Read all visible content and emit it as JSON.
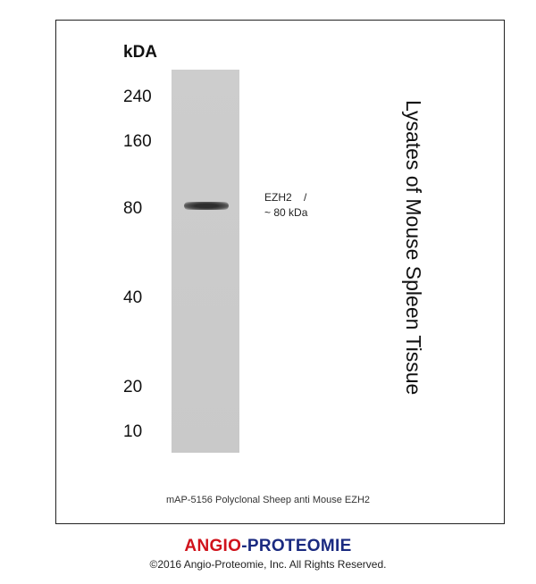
{
  "blot": {
    "unit_label": "kDA",
    "markers": [
      {
        "label": "240",
        "kda": 240
      },
      {
        "label": "160",
        "kda": 160
      },
      {
        "label": "80",
        "kda": 80
      },
      {
        "label": "40",
        "kda": 40
      },
      {
        "label": "20",
        "kda": 20
      },
      {
        "label": "10",
        "kda": 10
      }
    ],
    "band": {
      "line1": "EZH2    /",
      "line2": "~ 80 kDa",
      "kda": 80
    },
    "sample_label": "Lysates of Mouse Spleen Tissue",
    "caption": "mAP-5156 Polyclonal Sheep anti Mouse EZH2"
  },
  "footer": {
    "brand_part1": "ANGIO",
    "brand_sep": "-",
    "brand_part2": "PROTEOMIE",
    "brand_color1": "#d0121b",
    "brand_color2": "#1a2a80",
    "copyright": "©2016 Angio-Proteomie, Inc.  All Rights Reserved."
  }
}
